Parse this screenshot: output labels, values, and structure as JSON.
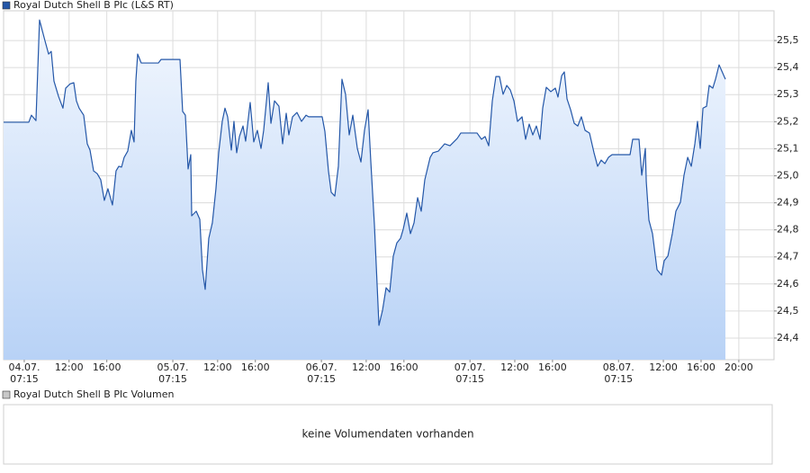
{
  "chart_data": {
    "type": "line",
    "series": [
      {
        "name": "Royal Dutch Shell B Plc (L&S RT)",
        "color": "#2457a8",
        "values": [
          25.198,
          25.198,
          25.224,
          25.204,
          25.576,
          25.5,
          25.45,
          25.46,
          25.35,
          25.294,
          25.25,
          25.324,
          25.34,
          25.344,
          25.277,
          25.25,
          25.224,
          25.118,
          25.095,
          25.018,
          25.008,
          24.985,
          24.909,
          24.952,
          24.892,
          25.018,
          25.035,
          25.032,
          25.068,
          25.091,
          25.168,
          25.125,
          25.35,
          25.45,
          25.417,
          25.417,
          25.43,
          25.43,
          25.238,
          25.224,
          25.025,
          25.078,
          24.852,
          24.869,
          24.839,
          24.653,
          24.58,
          24.769,
          24.826,
          24.952,
          25.085,
          25.201,
          25.25,
          25.218,
          25.095,
          25.201,
          25.085,
          25.145,
          25.184,
          25.128,
          25.271,
          25.125,
          25.168,
          25.101,
          25.168,
          25.344,
          25.194,
          25.277,
          25.257,
          25.118,
          25.231,
          25.151,
          25.218,
          25.234,
          25.201,
          25.224,
          25.218,
          25.218,
          25.164,
          25.018,
          24.939,
          24.925,
          25.035,
          25.357,
          25.301,
          25.151,
          25.224,
          25.101,
          25.051,
          25.168,
          25.244,
          25.051,
          24.819,
          24.447,
          24.503,
          24.586,
          24.57,
          24.703,
          24.752,
          24.769,
          24.802,
          24.862,
          24.786,
          24.826,
          24.919,
          24.869,
          24.985,
          25.068,
          25.085,
          25.091,
          25.118,
          25.111,
          25.138,
          25.158,
          25.158,
          25.135,
          25.145,
          25.111,
          25.277,
          25.367,
          25.367,
          25.301,
          25.334,
          25.317,
          25.277,
          25.201,
          25.218,
          25.135,
          25.191,
          25.151,
          25.184,
          25.135,
          25.25,
          25.327,
          25.311,
          25.324,
          25.291,
          25.37,
          25.384,
          25.284,
          25.244,
          25.194,
          25.184,
          25.218,
          25.168,
          25.158,
          25.085,
          25.035,
          25.058,
          25.045,
          25.068,
          25.078,
          25.078,
          25.135,
          25.135,
          25.002,
          25.101,
          24.978,
          24.836,
          24.786,
          24.653,
          24.633,
          24.686,
          24.703,
          24.786,
          24.869,
          24.902,
          25.002,
          25.068,
          25.035,
          25.118,
          25.201,
          25.101,
          25.25,
          25.257,
          25.334,
          25.324,
          25.357,
          25.41,
          25.357
        ]
      }
    ],
    "x": [
      -2.19,
      0.48,
      0.76,
      1.24,
      1.62,
      2.19,
      2.58,
      2.86,
      3.15,
      3.63,
      4.1,
      4.39,
      4.87,
      5.25,
      5.53,
      5.82,
      6.3,
      6.68,
      6.97,
      7.35,
      7.73,
      8.11,
      8.49,
      8.87,
      9.35,
      9.73,
      10.02,
      10.31,
      10.59,
      10.97,
      11.35,
      11.64,
      11.83,
      12.02,
      12.4,
      14.22,
      14.5,
      16.51,
      16.79,
      17.08,
      17.37,
      17.65,
      17.75,
      18.23,
      18.61,
      18.89,
      19.18,
      19.56,
      19.94,
      20.32,
      20.61,
      20.99,
      21.28,
      21.56,
      21.95,
      22.23,
      22.52,
      22.81,
      23.19,
      23.47,
      23.95,
      24.33,
      24.71,
      25.1,
      25.38,
      25.86,
      26.15,
      26.53,
      27.0,
      27.39,
      27.77,
      28.05,
      28.44,
      28.91,
      29.39,
      29.87,
      30.15,
      31.58,
      31.87,
      32.25,
      32.54,
      32.92,
      33.3,
      33.68,
      34.06,
      34.45,
      34.83,
      35.31,
      35.69,
      36.07,
      36.45,
      36.74,
      37.12,
      37.6,
      37.98,
      38.36,
      38.74,
      39.12,
      39.5,
      39.89,
      40.17,
      40.55,
      40.94,
      41.32,
      41.7,
      42.08,
      42.46,
      43.03,
      43.32,
      43.89,
      44.56,
      45.13,
      45.9,
      46.28,
      48.0,
      48.47,
      48.85,
      49.24,
      49.62,
      50.0,
      50.38,
      50.76,
      51.15,
      51.53,
      51.91,
      52.29,
      52.77,
      53.15,
      53.53,
      53.91,
      54.29,
      54.68,
      54.96,
      55.34,
      55.82,
      56.3,
      56.58,
      56.97,
      57.25,
      57.54,
      57.92,
      58.3,
      58.68,
      59.06,
      59.45,
      59.92,
      60.4,
      60.78,
      61.16,
      61.55,
      61.93,
      62.31,
      64.22,
      64.5,
      65.17,
      65.46,
      65.84,
      65.94,
      66.22,
      66.6,
      67.08,
      67.56,
      67.84,
      68.23,
      68.7,
      69.08,
      69.56,
      69.94,
      70.33,
      70.71,
      71.09,
      71.37,
      71.66,
      71.95,
      72.33,
      72.61,
      72.99,
      73.28,
      73.66,
      74.33
    ],
    "xlim": [
      -2.19,
      79.48
    ],
    "xticks": [
      {
        "value": 0,
        "label": "07:15",
        "date": "04.07."
      },
      {
        "value": 4.75,
        "label": "12:00"
      },
      {
        "value": 8.75,
        "label": "16:00"
      },
      {
        "value": 15.75,
        "label": "07:15",
        "date": "05.07."
      },
      {
        "value": 20.5,
        "label": "12:00"
      },
      {
        "value": 24.5,
        "label": "16:00"
      },
      {
        "value": 31.5,
        "label": "07:15",
        "date": "06.07."
      },
      {
        "value": 36.25,
        "label": "12:00"
      },
      {
        "value": 40.25,
        "label": "16:00"
      },
      {
        "value": 47.25,
        "label": "07:15",
        "date": "07.07."
      },
      {
        "value": 52,
        "label": "12:00"
      },
      {
        "value": 56,
        "label": "16:00"
      },
      {
        "value": 63,
        "label": "07:15",
        "date": "08.07."
      },
      {
        "value": 67.75,
        "label": "12:00"
      },
      {
        "value": 71.75,
        "label": "16:00"
      },
      {
        "value": 75.75,
        "label": "20:00"
      }
    ],
    "ylim": [
      24.32,
      25.61
    ],
    "yticks": [
      {
        "value": 24.4,
        "label": "24,4"
      },
      {
        "value": 24.5,
        "label": "24,5"
      },
      {
        "value": 24.6,
        "label": "24,6"
      },
      {
        "value": 24.7,
        "label": "24,7"
      },
      {
        "value": 24.8,
        "label": "24,8"
      },
      {
        "value": 24.9,
        "label": "24,9"
      },
      {
        "value": 25.0,
        "label": "25,0"
      },
      {
        "value": 25.1,
        "label": "25,1"
      },
      {
        "value": 25.2,
        "label": "25,2"
      },
      {
        "value": 25.3,
        "label": "25,3"
      },
      {
        "value": 25.4,
        "label": "25,4"
      },
      {
        "value": 25.5,
        "label": "25,5"
      }
    ],
    "grid": true
  },
  "volume_panel": {
    "title": "Royal Dutch Shell B Plc Volumen",
    "message": "keine Volumendaten vorhanden"
  }
}
